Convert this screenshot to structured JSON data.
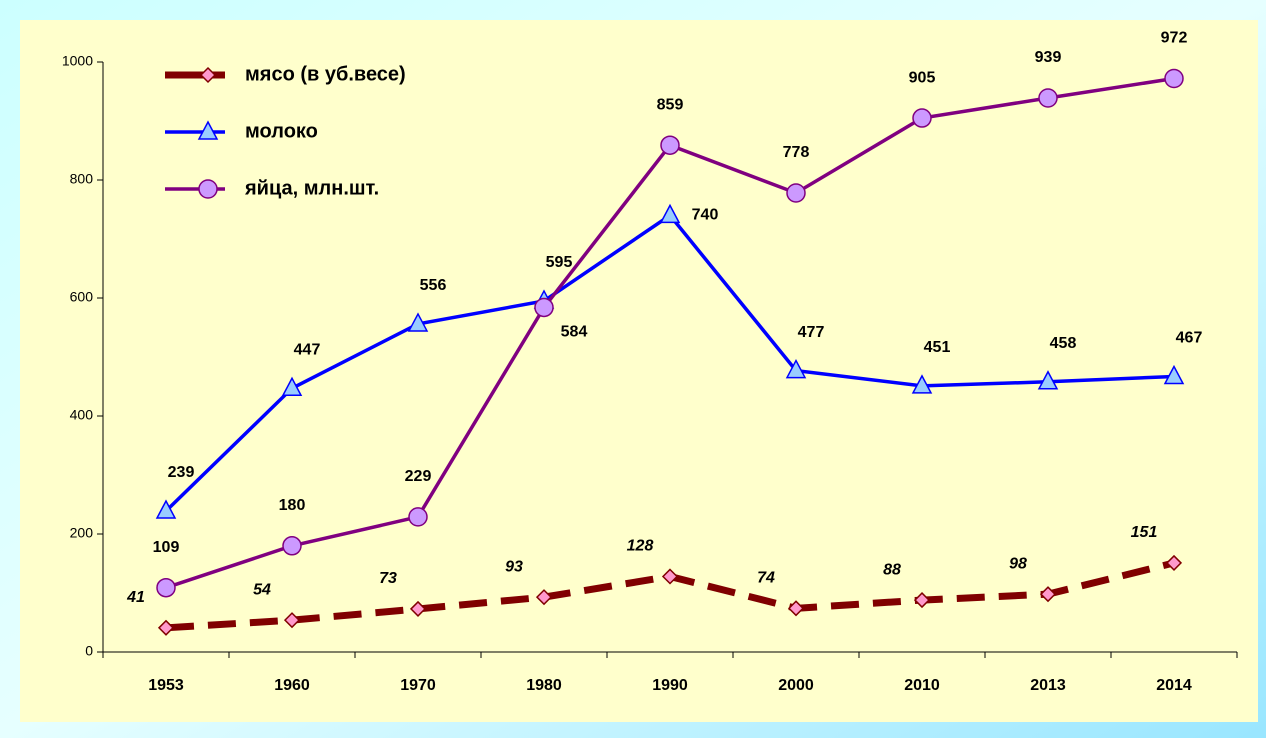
{
  "chart_data": {
    "type": "line",
    "categories": [
      "1953",
      "1960",
      "1970",
      "1980",
      "1990",
      "2000",
      "2010",
      "2013",
      "2014"
    ],
    "series": [
      {
        "name": "мясо (в уб.весе)",
        "color": "#800000",
        "marker_color": "#ff99cc",
        "marker": "diamond",
        "dashed": true,
        "values": [
          41,
          54,
          73,
          93,
          128,
          74,
          88,
          98,
          151
        ]
      },
      {
        "name": "молоко",
        "color": "#0000ff",
        "marker_color": "#99ccff",
        "marker": "triangle",
        "dashed": false,
        "values": [
          239,
          447,
          556,
          595,
          740,
          477,
          451,
          458,
          467
        ]
      },
      {
        "name": "яйца, млн.шт.",
        "color": "#800080",
        "marker_color": "#cc99ff",
        "marker": "circle",
        "dashed": false,
        "values": [
          109,
          180,
          229,
          584,
          859,
          778,
          905,
          939,
          972
        ]
      }
    ],
    "ylim": [
      0,
      1000
    ],
    "yticks": [
      0,
      200,
      400,
      600,
      800,
      1000
    ],
    "grid": false,
    "legend": "upper left"
  }
}
